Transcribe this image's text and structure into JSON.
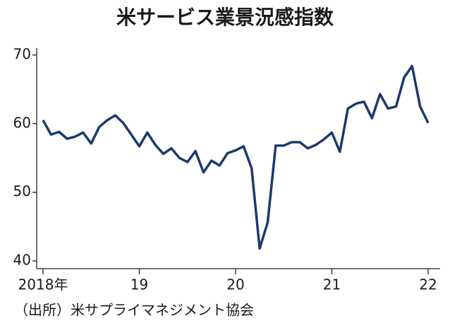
{
  "chart_data": {
    "type": "line",
    "title": "米サービス業景況感指数",
    "source": "（出所）米サプライマネジメント協会",
    "categories": [
      "2018年",
      null,
      null,
      null,
      null,
      null,
      null,
      null,
      null,
      null,
      null,
      null,
      "19",
      null,
      null,
      null,
      null,
      null,
      null,
      null,
      null,
      null,
      null,
      null,
      "20",
      null,
      null,
      null,
      null,
      null,
      null,
      null,
      null,
      null,
      null,
      null,
      "21",
      null,
      null,
      null,
      null,
      null,
      null,
      null,
      null,
      null,
      null,
      null,
      "22"
    ],
    "series": [
      {
        "color": "#1c3a6b",
        "values": [
          60.5,
          58.4,
          58.8,
          57.8,
          58.1,
          58.7,
          57.1,
          59.5,
          60.5,
          61.2,
          60.1,
          58.4,
          56.7,
          58.7,
          56.9,
          55.6,
          56.4,
          55.0,
          54.4,
          56.0,
          52.9,
          54.6,
          53.9,
          55.7,
          56.1,
          56.7,
          53.5,
          41.8,
          45.6,
          56.8,
          56.8,
          57.3,
          57.3,
          56.4,
          56.9,
          57.7,
          58.7,
          55.9,
          62.2,
          62.9,
          63.2,
          60.8,
          64.3,
          62.2,
          62.5,
          66.7,
          68.4,
          62.5,
          60.1
        ]
      }
    ],
    "ylim": [
      40,
      70
    ],
    "yticks": [
      40,
      50,
      60,
      70
    ],
    "grid": false
  }
}
